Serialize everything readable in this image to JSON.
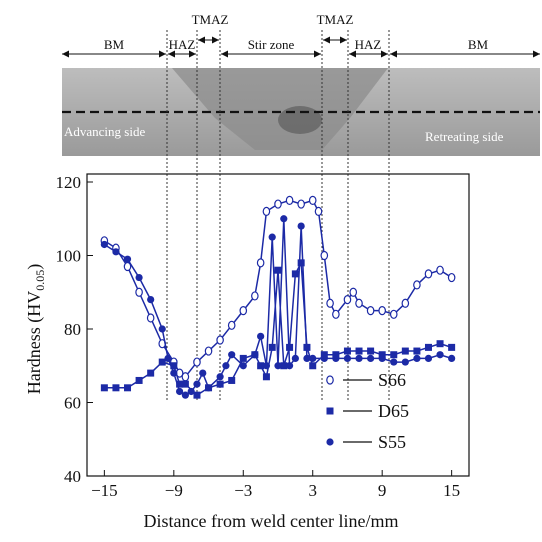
{
  "chart_data": {
    "type": "line",
    "annotations": {
      "zones": [
        "BM",
        "HAZ",
        "TMAZ",
        "Stir zone",
        "TMAZ",
        "HAZ",
        "BM"
      ],
      "advancing": "Advancing side",
      "retreating": "Retreating side"
    },
    "xlabel": "Distance from weld center line/mm",
    "ylabel_parts": [
      "Hardness (HV",
      "0.05",
      ")"
    ],
    "xlim": [
      -16.5,
      16.5
    ],
    "ylim": [
      40,
      120
    ],
    "xticks": [
      {
        "value": -15,
        "label": "−15"
      },
      {
        "value": -9,
        "label": "−9"
      },
      {
        "value": -3,
        "label": "−3"
      },
      3,
      9,
      15
    ],
    "yticks": [
      40,
      60,
      80,
      100,
      120
    ],
    "legend": "lower right",
    "series": [
      {
        "name": "S66",
        "color": "#1c2aa6",
        "marker": "open-circle",
        "x": [
          -15,
          -14,
          -13,
          -12,
          -11,
          -10,
          -9,
          -8.5,
          -8,
          -7,
          -6,
          -5,
          -4,
          -3,
          -2,
          -1.5,
          -1,
          0,
          1,
          2,
          3,
          3.5,
          4,
          4.5,
          5,
          6,
          6.5,
          7,
          8,
          9,
          10,
          11,
          12,
          13,
          14,
          15
        ],
        "values": [
          104,
          102,
          97,
          90,
          83,
          76,
          71,
          68,
          67,
          71,
          74,
          77,
          81,
          85,
          89,
          98,
          112,
          114,
          115,
          114,
          115,
          112,
          100,
          87,
          84,
          88,
          90,
          87,
          85,
          85,
          84,
          87,
          92,
          95,
          96,
          94
        ]
      },
      {
        "name": "D65",
        "color": "#1c2aa6",
        "marker": "square",
        "x": [
          -15,
          -14,
          -13,
          -12,
          -11,
          -10,
          -9,
          -8.5,
          -8,
          -7,
          -6,
          -5,
          -4,
          -3,
          -2,
          -1.5,
          -1,
          -0.5,
          0,
          0.5,
          1,
          1.5,
          2,
          2.5,
          3,
          4,
          5,
          6,
          7,
          8,
          9,
          10,
          11,
          12,
          13,
          14,
          15
        ],
        "values": [
          64,
          64,
          64,
          66,
          68,
          71,
          70,
          65,
          65,
          62,
          64,
          65,
          66,
          72,
          73,
          70,
          67,
          75,
          96,
          70,
          75,
          95,
          98,
          75,
          70,
          73,
          73,
          74,
          74,
          74,
          73,
          73,
          74,
          74,
          75,
          76,
          75
        ]
      },
      {
        "name": "S55",
        "color": "#1c2aa6",
        "marker": "circle",
        "x": [
          -15,
          -14,
          -13,
          -12,
          -11,
          -10,
          -9.5,
          -9,
          -8.5,
          -8,
          -7.5,
          -7,
          -6.5,
          -6,
          -5,
          -4.5,
          -4,
          -3,
          -2,
          -1.5,
          -1,
          -0.5,
          0,
          0.5,
          1,
          1.5,
          2,
          2.5,
          3,
          4,
          5,
          6,
          7,
          8,
          9,
          10,
          11,
          12,
          13,
          14,
          15
        ],
        "values": [
          103,
          101,
          99,
          94,
          88,
          80,
          72,
          68,
          63,
          62,
          63,
          65,
          68,
          64,
          67,
          70,
          73,
          70,
          73,
          78,
          70,
          105,
          70,
          110,
          70,
          72,
          108,
          72,
          72,
          72,
          72,
          72,
          72,
          72,
          72,
          71,
          71,
          72,
          72,
          73,
          72
        ]
      }
    ]
  }
}
